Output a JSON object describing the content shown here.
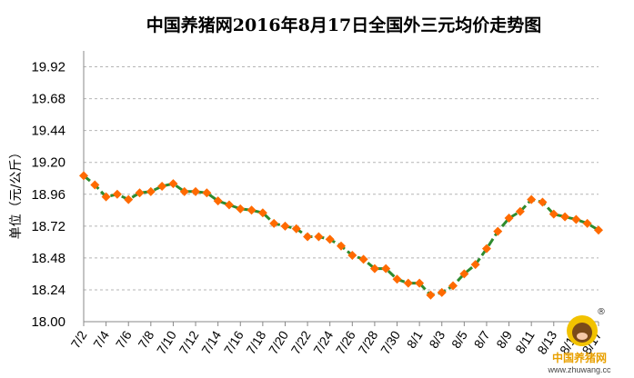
{
  "chart_data": {
    "type": "line",
    "title": "中国养猪网2016年8月17日全国外三元均价走势图",
    "ylabel": "单位（元/公斤）",
    "xlabel": "",
    "ylim": [
      18.0,
      20.04
    ],
    "yticks": [
      "18.00",
      "18.24",
      "18.48",
      "18.72",
      "18.96",
      "19.20",
      "19.44",
      "19.68",
      "19.92"
    ],
    "xtick_labels": [
      "7/2",
      "7/4",
      "7/6",
      "7/8",
      "7/10",
      "7/12",
      "7/14",
      "7/16",
      "7/18",
      "7/20",
      "7/22",
      "7/24",
      "7/26",
      "7/28",
      "7/30",
      "8/1",
      "8/3",
      "8/5",
      "8/7",
      "8/9",
      "8/11",
      "8/13",
      "8/15",
      "8/17"
    ],
    "series": [
      {
        "name": "",
        "color": "#2e8b2e",
        "marker_color": "#ff6a00",
        "x": [
          "7/2",
          "7/3",
          "7/4",
          "7/5",
          "7/6",
          "7/7",
          "7/8",
          "7/9",
          "7/10",
          "7/11",
          "7/12",
          "7/13",
          "7/14",
          "7/15",
          "7/16",
          "7/17",
          "7/18",
          "7/19",
          "7/20",
          "7/21",
          "7/22",
          "7/23",
          "7/24",
          "7/25",
          "7/26",
          "7/27",
          "7/28",
          "7/29",
          "7/30",
          "7/31",
          "8/1",
          "8/2",
          "8/3",
          "8/4",
          "8/5",
          "8/6",
          "8/7",
          "8/8",
          "8/9",
          "8/10",
          "8/11",
          "8/12",
          "8/13",
          "8/14",
          "8/15",
          "8/16",
          "8/17"
        ],
        "values": [
          19.1,
          19.03,
          18.94,
          18.96,
          18.92,
          18.97,
          18.98,
          19.02,
          19.04,
          18.98,
          18.98,
          18.97,
          18.91,
          18.88,
          18.85,
          18.84,
          18.82,
          18.74,
          18.72,
          18.7,
          18.64,
          18.64,
          18.62,
          18.57,
          18.5,
          18.47,
          18.4,
          18.4,
          18.32,
          18.29,
          18.29,
          18.2,
          18.22,
          18.27,
          18.36,
          18.43,
          18.55,
          18.68,
          18.78,
          18.83,
          18.92,
          18.9,
          18.81,
          18.79,
          18.77,
          18.74,
          18.69
        ]
      }
    ]
  },
  "logo": {
    "text": "中国养猪网",
    "url": "www.zhuwang.cc"
  }
}
